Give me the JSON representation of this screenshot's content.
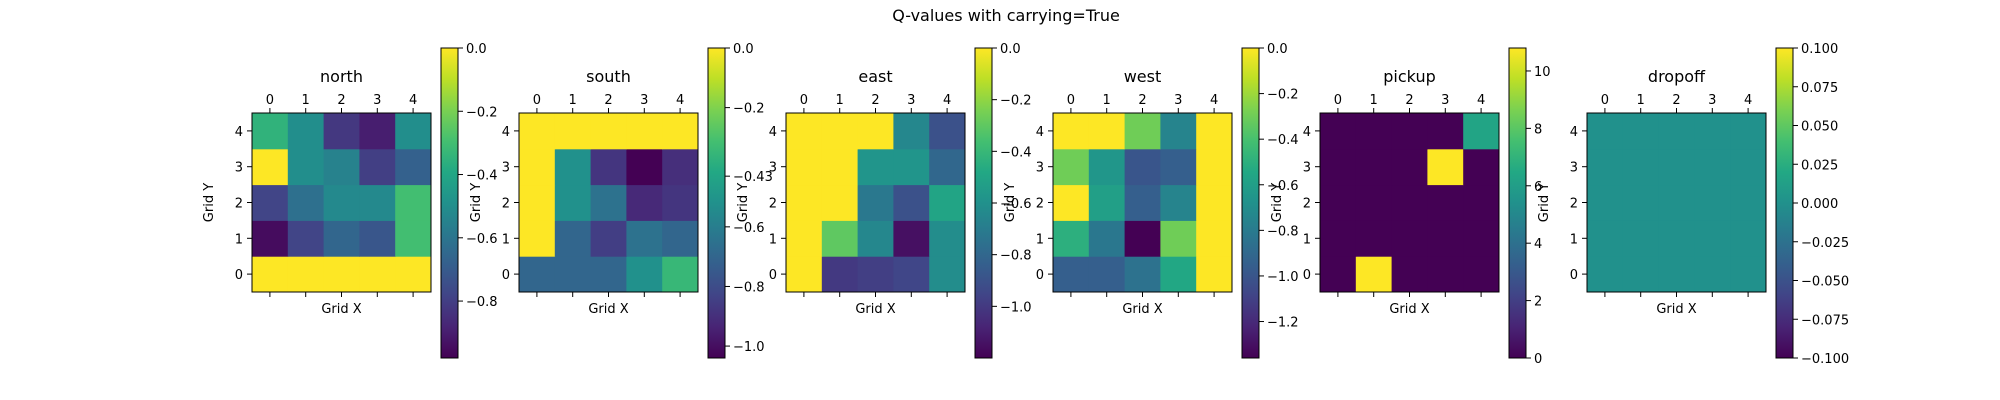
{
  "chart_data": {
    "title": "Q-values with carrying=True",
    "type": "heatmap",
    "colormap": "viridis",
    "x_ticks": [
      "0",
      "1",
      "2",
      "3",
      "4"
    ],
    "y_ticks": [
      "0",
      "1",
      "2",
      "3",
      "4"
    ],
    "panels": [
      {
        "title": "north",
        "xlabel": "Grid X",
        "ylabel": "Grid Y",
        "vmin": -0.98,
        "vmax": 0.0,
        "colorbar_ticks": [
          -0.8,
          -0.6,
          -0.4,
          -0.2,
          0.0
        ],
        "colorbar_tick_labels": [
          "−0.8",
          "−0.6",
          "−0.4",
          "−0.2",
          "0.0"
        ],
        "values": [
          [
            0.0,
            0.0,
            0.0,
            0.0,
            0.0
          ],
          [
            -0.95,
            -0.78,
            -0.66,
            -0.72,
            -0.3
          ],
          [
            -0.78,
            -0.62,
            -0.52,
            -0.52,
            -0.3
          ],
          [
            0.0,
            -0.5,
            -0.55,
            -0.8,
            -0.68
          ],
          [
            -0.35,
            -0.5,
            -0.82,
            -0.9,
            -0.5
          ]
        ]
      },
      {
        "title": "south",
        "xlabel": "Grid X",
        "ylabel": "Grid Y",
        "vmin": -1.04,
        "vmax": 0.0,
        "colorbar_ticks": [
          -1.0,
          -0.8,
          -0.6,
          -0.43,
          -0.2,
          0.0
        ],
        "colorbar_tick_labels": [
          "−1.0",
          "−0.8",
          "−0.6",
          "−0.43",
          "−0.2",
          "0.0"
        ],
        "values": [
          [
            -0.7,
            -0.7,
            -0.7,
            -0.52,
            -0.35
          ],
          [
            0.0,
            -0.7,
            -0.85,
            -0.65,
            -0.7
          ],
          [
            0.0,
            -0.52,
            -0.65,
            -0.92,
            -0.88
          ],
          [
            0.0,
            -0.52,
            -0.88,
            -1.04,
            -0.9
          ],
          [
            0.0,
            0.0,
            0.0,
            0.0,
            0.0
          ]
        ]
      },
      {
        "title": "east",
        "xlabel": "Grid X",
        "ylabel": "Grid Y",
        "vmin": -1.2,
        "vmax": 0.0,
        "colorbar_ticks": [
          -1.0,
          -0.8,
          -0.6,
          -0.4,
          -0.2,
          0.0
        ],
        "colorbar_tick_labels": [
          "−1.0",
          "−0.8",
          "−0.6",
          "−0.4",
          "−0.2",
          "0.0"
        ],
        "values": [
          [
            0.0,
            -1.0,
            -0.98,
            -0.95,
            -0.62
          ],
          [
            0.0,
            -0.3,
            -0.65,
            -1.15,
            -0.62
          ],
          [
            0.0,
            0.0,
            -0.72,
            -0.9,
            -0.5
          ],
          [
            0.0,
            0.0,
            -0.58,
            -0.58,
            -0.8
          ],
          [
            0.0,
            0.0,
            0.0,
            -0.65,
            -0.9
          ]
        ]
      },
      {
        "title": "west",
        "xlabel": "Grid X",
        "ylabel": "Grid Y",
        "vmin": -1.36,
        "vmax": 0.0,
        "colorbar_ticks": [
          -1.2,
          -1.0,
          -0.8,
          -0.6,
          -0.4,
          -0.2,
          0.0
        ],
        "colorbar_tick_labels": [
          "−1.2",
          "−1.0",
          "−0.8",
          "−0.6",
          "−0.4",
          "−0.2",
          "0.0"
        ],
        "values": [
          [
            -0.95,
            -0.95,
            -0.85,
            -0.55,
            0.0
          ],
          [
            -0.5,
            -0.82,
            -1.36,
            -0.3,
            0.0
          ],
          [
            0.0,
            -0.6,
            -0.95,
            -0.75,
            0.0
          ],
          [
            -0.3,
            -0.65,
            -1.0,
            -0.95,
            0.0
          ],
          [
            0.0,
            0.0,
            -0.3,
            -0.75,
            0.0
          ]
        ]
      },
      {
        "title": "pickup",
        "xlabel": "Grid X",
        "ylabel": "Grid Y",
        "vmin": 0,
        "vmax": 10.8,
        "colorbar_ticks": [
          0,
          2,
          4,
          6,
          8,
          10
        ],
        "colorbar_tick_labels": [
          "0",
          "2",
          "4",
          "6",
          "8",
          "10"
        ],
        "values": [
          [
            0,
            10.8,
            0,
            0,
            0
          ],
          [
            0,
            0,
            0,
            0,
            0
          ],
          [
            0,
            0,
            0,
            0,
            0
          ],
          [
            0,
            0,
            0,
            10.8,
            0
          ],
          [
            0,
            0,
            0,
            0,
            6.3
          ]
        ]
      },
      {
        "title": "dropoff",
        "xlabel": "Grid X",
        "ylabel": "Grid Y",
        "vmin": -0.1,
        "vmax": 0.1,
        "colorbar_ticks": [
          -0.1,
          -0.075,
          -0.05,
          -0.025,
          0.0,
          0.025,
          0.05,
          0.075,
          0.1
        ],
        "colorbar_tick_labels": [
          "−0.100",
          "−0.075",
          "−0.050",
          "−0.025",
          "0.000",
          "0.025",
          "0.050",
          "0.075",
          "0.100"
        ],
        "values": [
          [
            0,
            0,
            0,
            0,
            0
          ],
          [
            0,
            0,
            0,
            0,
            0
          ],
          [
            0,
            0,
            0,
            0,
            0
          ],
          [
            0,
            0,
            0,
            0,
            0
          ],
          [
            0,
            0,
            0,
            0,
            0
          ]
        ]
      }
    ]
  }
}
